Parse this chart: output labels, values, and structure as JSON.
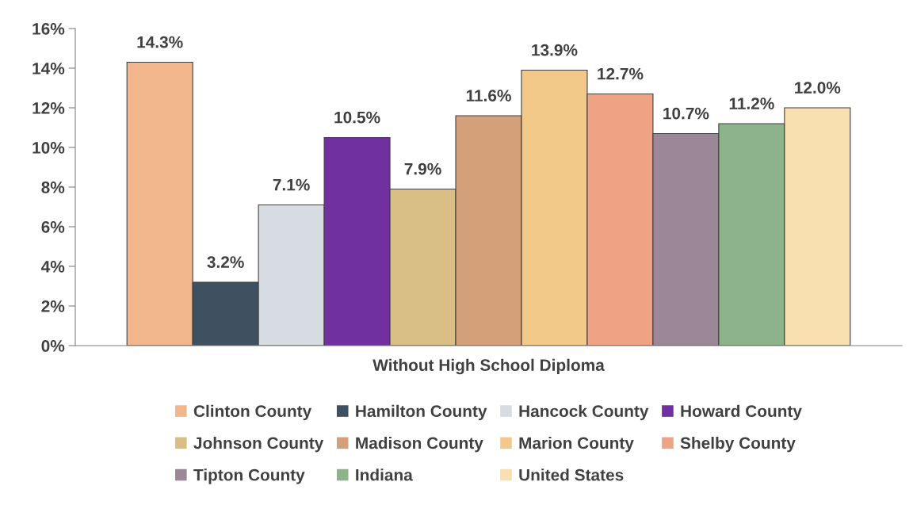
{
  "chart_data": {
    "type": "bar",
    "categories": [
      "Without High School Diploma"
    ],
    "series": [
      {
        "name": "Clinton County",
        "color": "#f2b68c",
        "values": [
          14.3
        ],
        "value_labels": [
          "14.3%"
        ]
      },
      {
        "name": "Hamilton County",
        "color": "#3f5060",
        "values": [
          3.2
        ],
        "value_labels": [
          "3.2%"
        ]
      },
      {
        "name": "Hancock County",
        "color": "#d6dce2",
        "values": [
          7.1
        ],
        "value_labels": [
          "7.1%"
        ]
      },
      {
        "name": "Howard County",
        "color": "#7030a0",
        "values": [
          10.5
        ],
        "value_labels": [
          "10.5%"
        ]
      },
      {
        "name": "Johnson County",
        "color": "#d9bf85",
        "values": [
          7.9
        ],
        "value_labels": [
          "7.9%"
        ]
      },
      {
        "name": "Madison County",
        "color": "#d4a07a",
        "values": [
          11.6
        ],
        "value_labels": [
          "11.6%"
        ]
      },
      {
        "name": "Marion County",
        "color": "#f3c98a",
        "values": [
          13.9
        ],
        "value_labels": [
          "13.9%"
        ]
      },
      {
        "name": "Shelby County",
        "color": "#eea385",
        "values": [
          12.7
        ],
        "value_labels": [
          "12.7%"
        ]
      },
      {
        "name": "Tipton County",
        "color": "#9b8797",
        "values": [
          10.7
        ],
        "value_labels": [
          "10.7%"
        ]
      },
      {
        "name": "Indiana",
        "color": "#8db38a",
        "values": [
          11.2
        ],
        "value_labels": [
          "11.2%"
        ]
      },
      {
        "name": "United States",
        "color": "#f8e0b0",
        "values": [
          12.0
        ],
        "value_labels": [
          "12.0%"
        ]
      }
    ],
    "ylim": [
      0,
      16
    ],
    "yticks": [
      {
        "value": 0,
        "label": "0%"
      },
      {
        "value": 2,
        "label": "2%"
      },
      {
        "value": 4,
        "label": "4%"
      },
      {
        "value": 6,
        "label": "6%"
      },
      {
        "value": 8,
        "label": "8%"
      },
      {
        "value": 10,
        "label": "10%"
      },
      {
        "value": 12,
        "label": "12%"
      },
      {
        "value": 14,
        "label": "14%"
      },
      {
        "value": 16,
        "label": "16%"
      }
    ],
    "grid": false,
    "legend": "bottom"
  }
}
